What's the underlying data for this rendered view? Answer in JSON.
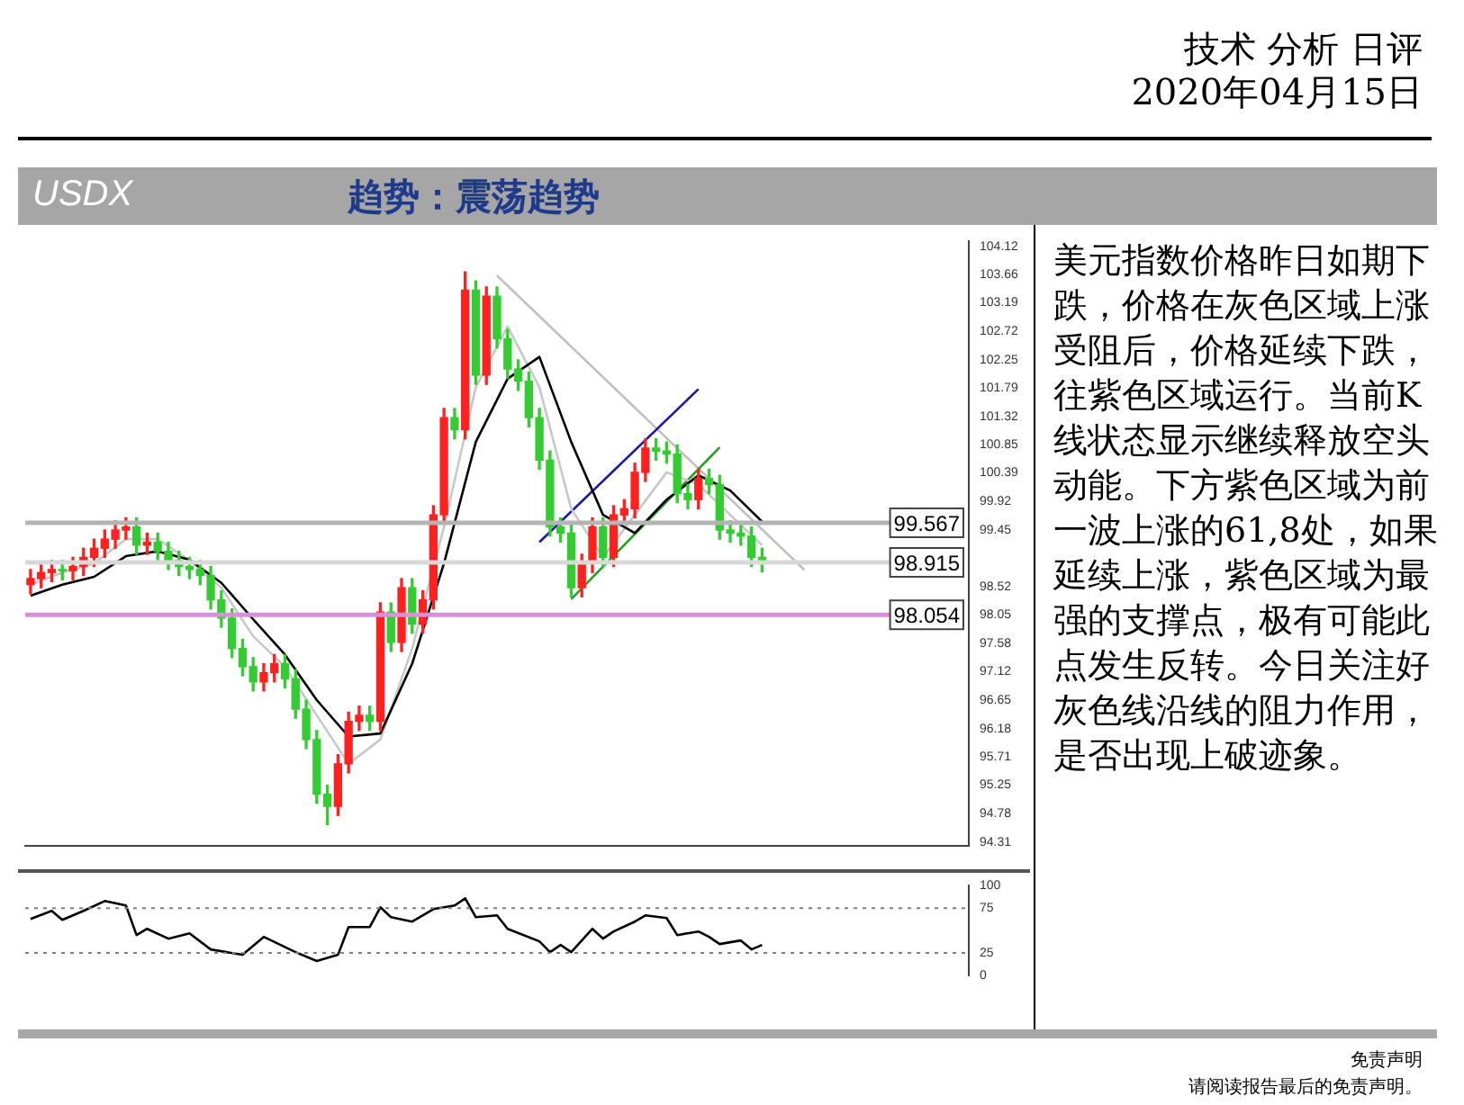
{
  "chart_data": [
    {
      "type": "candlestick",
      "title": "USDX",
      "subtitle": "趋势：震荡趋势",
      "annotations": [
        "技术 分析 日评",
        "2020年04月15日",
        "免责声明",
        "请阅读报告最后的免责声明。"
      ],
      "categories": [
        null,
        null,
        null,
        null,
        null,
        null,
        null,
        null,
        null,
        null,
        null,
        null,
        null,
        null,
        null,
        null,
        null,
        null,
        null,
        null,
        null,
        null,
        null,
        null,
        null,
        null,
        null,
        null,
        null,
        null,
        null,
        null,
        null,
        null,
        null,
        null,
        null,
        null,
        null,
        null,
        null,
        null,
        null,
        null,
        null,
        null,
        null,
        null,
        null,
        null,
        null,
        null,
        null,
        null,
        null,
        null,
        null,
        null,
        null,
        null,
        null,
        null,
        null,
        null,
        null,
        null,
        null,
        null,
        null,
        null,
        null,
        null,
        null,
        null,
        null,
        null,
        null,
        null,
        null,
        null,
        null,
        null,
        null,
        null,
        null,
        null,
        null,
        null,
        null
      ],
      "ohlc": [
        [
          98.55,
          98.8,
          98.4,
          98.65
        ],
        [
          98.65,
          98.9,
          98.5,
          98.75
        ],
        [
          98.75,
          98.95,
          98.6,
          98.8
        ],
        [
          98.8,
          98.95,
          98.63,
          98.78
        ],
        [
          98.78,
          99.0,
          98.63,
          98.85
        ],
        [
          98.85,
          99.15,
          98.7,
          99.0
        ],
        [
          99.0,
          99.3,
          98.85,
          99.15
        ],
        [
          99.15,
          99.45,
          99.0,
          99.3
        ],
        [
          99.3,
          99.6,
          99.15,
          99.45
        ],
        [
          99.45,
          99.65,
          99.3,
          99.5
        ],
        [
          99.5,
          99.65,
          99.05,
          99.2
        ],
        [
          99.2,
          99.4,
          99.05,
          99.25
        ],
        [
          99.25,
          99.4,
          98.95,
          99.1
        ],
        [
          99.1,
          99.25,
          98.8,
          98.95
        ],
        [
          98.95,
          99.1,
          98.7,
          98.85
        ],
        [
          98.85,
          99.0,
          98.65,
          98.8
        ],
        [
          98.8,
          98.95,
          98.55,
          98.7
        ],
        [
          98.7,
          98.85,
          98.15,
          98.3
        ],
        [
          98.3,
          98.45,
          97.85,
          98.0
        ],
        [
          98.0,
          98.15,
          97.35,
          97.5
        ],
        [
          97.5,
          97.65,
          97.05,
          97.2
        ],
        [
          97.2,
          97.35,
          96.8,
          96.95
        ],
        [
          96.95,
          97.25,
          96.8,
          97.1
        ],
        [
          97.1,
          97.4,
          96.95,
          97.25
        ],
        [
          97.25,
          97.4,
          96.85,
          97.0
        ],
        [
          97.0,
          97.15,
          96.35,
          96.5
        ],
        [
          96.5,
          96.65,
          95.85,
          96.0
        ],
        [
          96.0,
          96.15,
          94.95,
          95.1
        ],
        [
          95.1,
          95.25,
          94.6,
          94.9
        ],
        [
          94.9,
          95.75,
          94.75,
          95.6
        ],
        [
          95.6,
          96.45,
          95.45,
          96.3
        ],
        [
          96.3,
          96.55,
          96.15,
          96.4
        ],
        [
          96.4,
          96.55,
          96.15,
          96.3
        ],
        [
          96.3,
          98.25,
          96.15,
          98.1
        ],
        [
          98.1,
          98.25,
          97.45,
          97.6
        ],
        [
          97.6,
          98.65,
          97.45,
          98.5
        ],
        [
          98.5,
          98.65,
          97.75,
          97.9
        ],
        [
          97.9,
          98.45,
          97.75,
          98.3
        ],
        [
          98.3,
          99.85,
          98.15,
          99.7
        ],
        [
          99.7,
          101.45,
          99.55,
          101.3
        ],
        [
          101.3,
          101.45,
          100.95,
          101.1
        ],
        [
          101.1,
          103.7,
          100.95,
          103.4
        ],
        [
          103.4,
          103.55,
          101.85,
          102.0
        ],
        [
          102.0,
          103.45,
          101.85,
          103.3
        ],
        [
          103.3,
          103.45,
          102.45,
          102.6
        ],
        [
          102.6,
          102.75,
          101.95,
          102.1
        ],
        [
          102.1,
          102.25,
          101.75,
          101.9
        ],
        [
          101.9,
          102.05,
          101.15,
          101.3
        ],
        [
          101.3,
          101.45,
          100.45,
          100.6
        ],
        [
          100.6,
          100.75,
          99.35,
          99.5
        ],
        [
          99.5,
          99.65,
          99.25,
          99.4
        ],
        [
          99.4,
          99.55,
          98.35,
          98.5
        ],
        [
          98.5,
          99.05,
          98.35,
          98.9
        ],
        [
          98.9,
          99.65,
          98.75,
          99.5
        ],
        [
          99.5,
          99.65,
          98.85,
          99.0
        ],
        [
          99.0,
          99.85,
          98.85,
          99.7
        ],
        [
          99.7,
          99.95,
          99.55,
          99.8
        ],
        [
          99.8,
          100.55,
          99.65,
          100.4
        ],
        [
          100.4,
          100.95,
          100.25,
          100.8
        ],
        [
          100.8,
          100.95,
          100.6,
          100.75
        ],
        [
          100.75,
          100.9,
          100.55,
          100.7
        ],
        [
          100.7,
          100.85,
          99.9,
          100.05
        ],
        [
          100.05,
          100.2,
          99.8,
          99.95
        ],
        [
          99.95,
          100.45,
          99.8,
          100.3
        ],
        [
          100.3,
          100.45,
          100.05,
          100.2
        ],
        [
          100.2,
          100.35,
          99.3,
          99.45
        ],
        [
          99.45,
          99.6,
          99.25,
          99.4
        ],
        [
          99.4,
          99.55,
          99.2,
          99.35
        ],
        [
          99.35,
          99.5,
          98.85,
          99.0
        ],
        [
          99.0,
          99.15,
          98.76,
          98.915
        ],
        null,
        null,
        null,
        null,
        null,
        null,
        null,
        null,
        null,
        null,
        null,
        null,
        null,
        null,
        null,
        null,
        null,
        null,
        null
      ],
      "colors": [
        "#ff2020",
        "#ff2020",
        "#ff2020",
        "#33cc33",
        "#ff2020",
        "#ff2020",
        "#ff2020",
        "#ff2020",
        "#ff2020",
        "#ff2020",
        "#33cc33",
        "#ff2020",
        "#33cc33",
        "#33cc33",
        "#33cc33",
        "#33cc33",
        "#33cc33",
        "#33cc33",
        "#33cc33",
        "#33cc33",
        "#33cc33",
        "#33cc33",
        "#ff2020",
        "#ff2020",
        "#33cc33",
        "#33cc33",
        "#33cc33",
        "#33cc33",
        "#33cc33",
        "#ff2020",
        "#ff2020",
        "#ff2020",
        "#33cc33",
        "#ff2020",
        "#33cc33",
        "#ff2020",
        "#33cc33",
        "#ff2020",
        "#ff2020",
        "#ff2020",
        "#33cc33",
        "#ff2020",
        "#33cc33",
        "#ff2020",
        "#33cc33",
        "#33cc33",
        "#33cc33",
        "#33cc33",
        "#33cc33",
        "#33cc33",
        "#33cc33",
        "#33cc33",
        "#ff2020",
        "#ff2020",
        "#33cc33",
        "#ff2020",
        "#ff2020",
        "#ff2020",
        "#ff2020",
        "#33cc33",
        "#33cc33",
        "#33cc33",
        "#33cc33",
        "#ff2020",
        "#33cc33",
        "#33cc33",
        "#33cc33",
        "#33cc33",
        "#33cc33",
        "#33cc33",
        null,
        null,
        null,
        null,
        null,
        null,
        null,
        null,
        null,
        null,
        null,
        null,
        null,
        null,
        null,
        null,
        null,
        null,
        null
      ],
      "series": [
        {
          "type": "line",
          "color": "#000000",
          "values": [
            98.37,
            null,
            null,
            98.55,
            null,
            null,
            98.68,
            null,
            null,
            99.02,
            null,
            null,
            99.1,
            null,
            null,
            98.96,
            null,
            null,
            98.58,
            null,
            null,
            97.98,
            null,
            null,
            97.4,
            null,
            null,
            96.65,
            null,
            null,
            96.05,
            null,
            null,
            96.1,
            null,
            null,
            97.25,
            null,
            null,
            98.9,
            null,
            null,
            100.9,
            null,
            null,
            101.94,
            null,
            null,
            102.3,
            null,
            null,
            100.9,
            null,
            null,
            99.7,
            null,
            null,
            99.4,
            null,
            null,
            99.95,
            null,
            null,
            100.35,
            null,
            null,
            100.1,
            null,
            null,
            99.59,
            null,
            null,
            null,
            null,
            null,
            null,
            null,
            null,
            null,
            null,
            null,
            null,
            null,
            null,
            null,
            null,
            null,
            null,
            null
          ]
        },
        {
          "type": "line",
          "color": "#c8c8c8",
          "values": [
            98.55,
            null,
            null,
            98.75,
            null,
            null,
            98.9,
            null,
            null,
            99.3,
            null,
            null,
            99.3,
            null,
            null,
            98.95,
            null,
            null,
            98.5,
            null,
            null,
            97.7,
            null,
            null,
            97.2,
            null,
            null,
            96.4,
            null,
            null,
            95.6,
            null,
            null,
            96.0,
            null,
            null,
            97.5,
            null,
            null,
            99.5,
            null,
            null,
            101.8,
            null,
            null,
            102.8,
            null,
            null,
            101.8,
            null,
            null,
            99.8,
            null,
            null,
            99.0,
            null,
            null,
            99.7,
            null,
            null,
            100.4,
            null,
            null,
            100.2,
            null,
            null,
            99.7,
            null,
            null,
            99.2,
            null,
            null,
            null,
            null,
            null,
            null,
            null,
            null,
            null,
            null,
            null,
            null,
            null,
            null,
            null,
            null,
            null,
            null,
            null
          ]
        },
        {
          "type": "line",
          "color": "#1a1aa0",
          "values": [
            null,
            null,
            null,
            null,
            null,
            null,
            null,
            null,
            null,
            null,
            null,
            null,
            null,
            null,
            null,
            null,
            null,
            null,
            null,
            null,
            null,
            null,
            null,
            null,
            null,
            null,
            null,
            null,
            null,
            null,
            null,
            null,
            null,
            null,
            null,
            null,
            null,
            null,
            null,
            null,
            null,
            null,
            null,
            null,
            null,
            null,
            null,
            null,
            99.25,
            null,
            null,
            null,
            null,
            null,
            null,
            null,
            null,
            null,
            null,
            null,
            null,
            null,
            null,
            101.77,
            null,
            null,
            null,
            null,
            null,
            null,
            null,
            null,
            null,
            null,
            null,
            null,
            null,
            null,
            null,
            null,
            null,
            null,
            null,
            null,
            null,
            null,
            null,
            null,
            null
          ]
        },
        {
          "type": "line",
          "color": "#22a022",
          "values": [
            null,
            null,
            null,
            null,
            null,
            null,
            null,
            null,
            null,
            null,
            null,
            null,
            null,
            null,
            null,
            null,
            null,
            null,
            null,
            null,
            null,
            null,
            null,
            null,
            null,
            null,
            null,
            null,
            null,
            null,
            null,
            null,
            null,
            null,
            null,
            null,
            null,
            null,
            null,
            null,
            null,
            null,
            null,
            null,
            null,
            null,
            null,
            null,
            null,
            null,
            null,
            98.31,
            null,
            null,
            null,
            null,
            null,
            null,
            null,
            null,
            null,
            null,
            null,
            null,
            null,
            100.81,
            null,
            null,
            null,
            null,
            null,
            null,
            null,
            null,
            null,
            null,
            null,
            null,
            null,
            null,
            null,
            null,
            null,
            null,
            null,
            null,
            null,
            null,
            null
          ]
        },
        {
          "type": "line",
          "color": "#c0c0c0",
          "values": [
            null,
            null,
            null,
            null,
            null,
            null,
            null,
            null,
            null,
            null,
            null,
            null,
            null,
            null,
            null,
            null,
            null,
            null,
            null,
            null,
            null,
            null,
            null,
            null,
            null,
            null,
            null,
            null,
            null,
            null,
            null,
            null,
            null,
            null,
            null,
            null,
            null,
            null,
            null,
            null,
            null,
            null,
            null,
            null,
            103.64,
            null,
            null,
            null,
            null,
            null,
            null,
            null,
            null,
            null,
            null,
            null,
            null,
            null,
            null,
            null,
            null,
            null,
            null,
            null,
            null,
            null,
            null,
            null,
            null,
            null,
            null,
            null,
            null,
            98.79,
            null,
            null,
            null,
            null,
            null,
            null,
            null,
            null,
            null,
            null,
            null,
            null,
            null,
            null,
            null
          ]
        }
      ],
      "ylim": [
        94.25,
        104.2
      ],
      "tick_labels": "y",
      "yticks": [
        94.31,
        94.78,
        95.25,
        95.71,
        96.18,
        96.65,
        97.12,
        97.58,
        98.05,
        98.52,
        99.45,
        99.92,
        100.39,
        100.85,
        101.32,
        101.79,
        102.25,
        102.72,
        103.19,
        103.66,
        104.12
      ],
      "ref_lines": [
        {
          "axis": "y",
          "value": 99.567,
          "label": "99.567",
          "color": "#b4b4b4"
        },
        {
          "axis": "y",
          "value": 98.054,
          "label": "98.054",
          "color": "#d890d8"
        },
        {
          "axis": "y",
          "value": 98.915,
          "label": "98.915",
          "color": "#d8d8d8"
        }
      ]
    },
    {
      "type": "line",
      "color": "#000000",
      "categories": [
        null,
        null,
        null,
        null,
        null,
        null,
        null,
        null,
        null,
        null,
        null,
        null,
        null,
        null,
        null,
        null,
        null,
        null,
        null,
        null,
        null,
        null,
        null,
        null,
        null,
        null,
        null,
        null,
        null,
        null,
        null,
        null,
        null,
        null,
        null,
        null,
        null,
        null,
        null,
        null,
        null,
        null,
        null,
        null,
        null,
        null,
        null,
        null,
        null,
        null,
        null,
        null,
        null,
        null,
        null,
        null,
        null,
        null,
        null,
        null,
        null,
        null,
        null,
        null,
        null,
        null,
        null,
        null,
        null,
        null,
        null,
        null,
        null,
        null,
        null,
        null,
        null,
        null,
        null,
        null,
        null,
        null,
        null,
        null,
        null,
        null,
        null,
        null,
        null
      ],
      "values": [
        63,
        null,
        72,
        62,
        null,
        72,
        null,
        83,
        null,
        78,
        45,
        52,
        null,
        41,
        null,
        47,
        null,
        29,
        null,
        null,
        23,
        null,
        43,
        null,
        null,
        26,
        null,
        16,
        null,
        23,
        54,
        null,
        54,
        76,
        65,
        null,
        60,
        null,
        74,
        null,
        78,
        86,
        65,
        null,
        67,
        52,
        null,
        null,
        38,
        26,
        34,
        26,
        null,
        52,
        41,
        49,
        null,
        60,
        67,
        null,
        64,
        45,
        null,
        49,
        43,
        35,
        null,
        39,
        29,
        34,
        null,
        null,
        null,
        null,
        null,
        null,
        null,
        null,
        null,
        null,
        null,
        null,
        null,
        null,
        null,
        null,
        null,
        null,
        null
      ],
      "ylim": [
        0,
        100
      ],
      "tick_labels": "y",
      "yticks": [
        0,
        25,
        75,
        100
      ],
      "ref_lines": [
        {
          "axis": "y",
          "value": 75,
          "color": "#808080",
          "line_style": "dotted"
        },
        {
          "axis": "y",
          "value": 25,
          "color": "#808080",
          "line_style": "dotted"
        }
      ]
    },
    {
      "type": "other",
      "annotations": [
        "美元指数价格昨日如期下跌，价格在灰色区域上涨受阻后，价格延续下跌，往紫色区域运行。当前K线状态显示继续释放空头动能。下方紫色区域为前一波上涨的61,8处，如果延续上涨，紫色区域为最强的支撑点，极有可能此点发生反转。今日关注好灰色线沿线的阻力作用，是否出现上破迹象。"
      ]
    }
  ]
}
